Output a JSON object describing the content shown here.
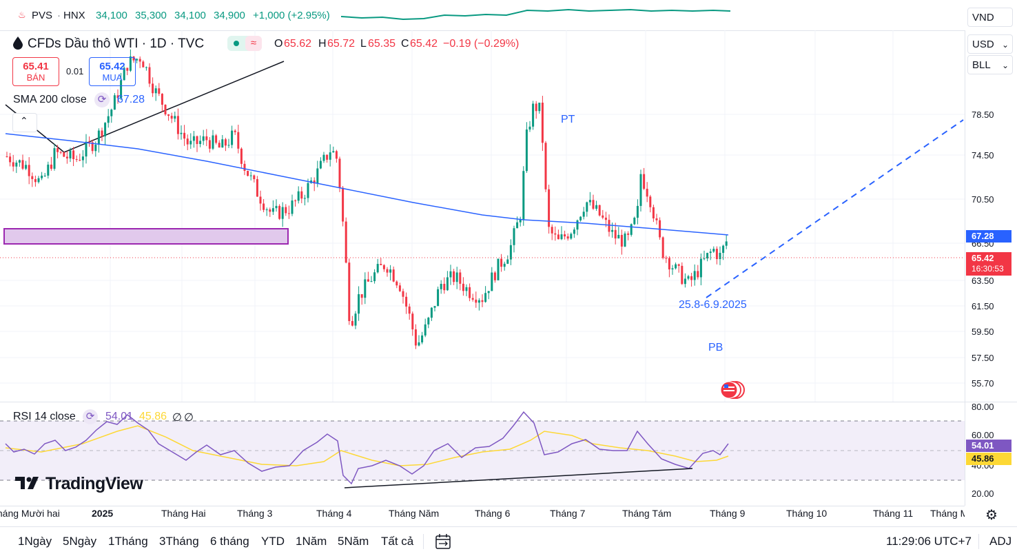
{
  "ticker": {
    "symbol": "PVS",
    "exchange": "HNX",
    "open": "34,100",
    "high": "35,300",
    "low": "34,100",
    "close": "34,900",
    "change": "+1,000 (+2.95%)"
  },
  "right_controls": {
    "currency_top": "VND",
    "currency": "USD",
    "unit": "BLL"
  },
  "legend": {
    "title": "CFDs Dầu thô WTI · 1D · TVC",
    "o_label": "O",
    "o_value": "65.62",
    "h_label": "H",
    "h_value": "65.72",
    "l_label": "L",
    "l_value": "65.35",
    "c_label": "C",
    "c_value": "65.42",
    "change": "−0.19 (−0.29%)",
    "sell_price": "65.41",
    "sell_label": "BÁN",
    "spread": "0.01",
    "buy_price": "65.42",
    "buy_label": "MUA",
    "sma_label": "SMA 200 close",
    "sma_value": "67.28",
    "collapse_icon": "chevron-up-icon"
  },
  "annotations": {
    "pt": "PT",
    "pb": "PB",
    "date_range": "25.8-6.9.2025"
  },
  "price_scale": {
    "ticks": [
      "78.50",
      "74.50",
      "70.50",
      "66.50",
      "63.50",
      "61.50",
      "59.50",
      "57.50",
      "55.70"
    ],
    "sma_tag": "67.28",
    "price_tag": "65.42",
    "countdown": "16:30:53",
    "colors": {
      "sma": "#2962ff",
      "price": "#f23645"
    }
  },
  "rsi": {
    "label": "RSI 14 close",
    "value": "54.01",
    "ma_value": "45.86",
    "extra1": "∅",
    "extra2": "∅",
    "ticks": [
      "80.00",
      "60.00",
      "40.00",
      "20.00"
    ],
    "tag_rsi": "54.01",
    "tag_ma": "45.86",
    "colors": {
      "rsi": "#7e57c2",
      "ma": "#fdd835"
    }
  },
  "chart_data": {
    "type": "candlestick",
    "series": [
      {
        "name": "SMA 200 close",
        "last": 67.28
      },
      {
        "name": "RSI 14 close",
        "last": 54.01
      }
    ],
    "ylim": [
      54.5,
      81
    ],
    "last_close": 65.42
  },
  "x_axis": {
    "labels": [
      "tháng Mười hai",
      "2025",
      "Tháng Hai",
      "Tháng 3",
      "Tháng 4",
      "Tháng Năm",
      "Tháng 6",
      "Tháng 7",
      "Tháng Tám",
      "Tháng 9",
      "Tháng 10",
      "Tháng 11",
      "Tháng M"
    ],
    "settings_icon": "gear-icon"
  },
  "logo": "TradingView",
  "bottom": {
    "ranges": [
      "1Ngày",
      "5Ngày",
      "1Tháng",
      "3Tháng",
      "6 tháng",
      "YTD",
      "1Năm",
      "5Năm",
      "Tất cả"
    ],
    "calendar_icon": "calendar-arrows-icon",
    "time": "11:29:06 UTC+7",
    "adj": "ADJ"
  }
}
